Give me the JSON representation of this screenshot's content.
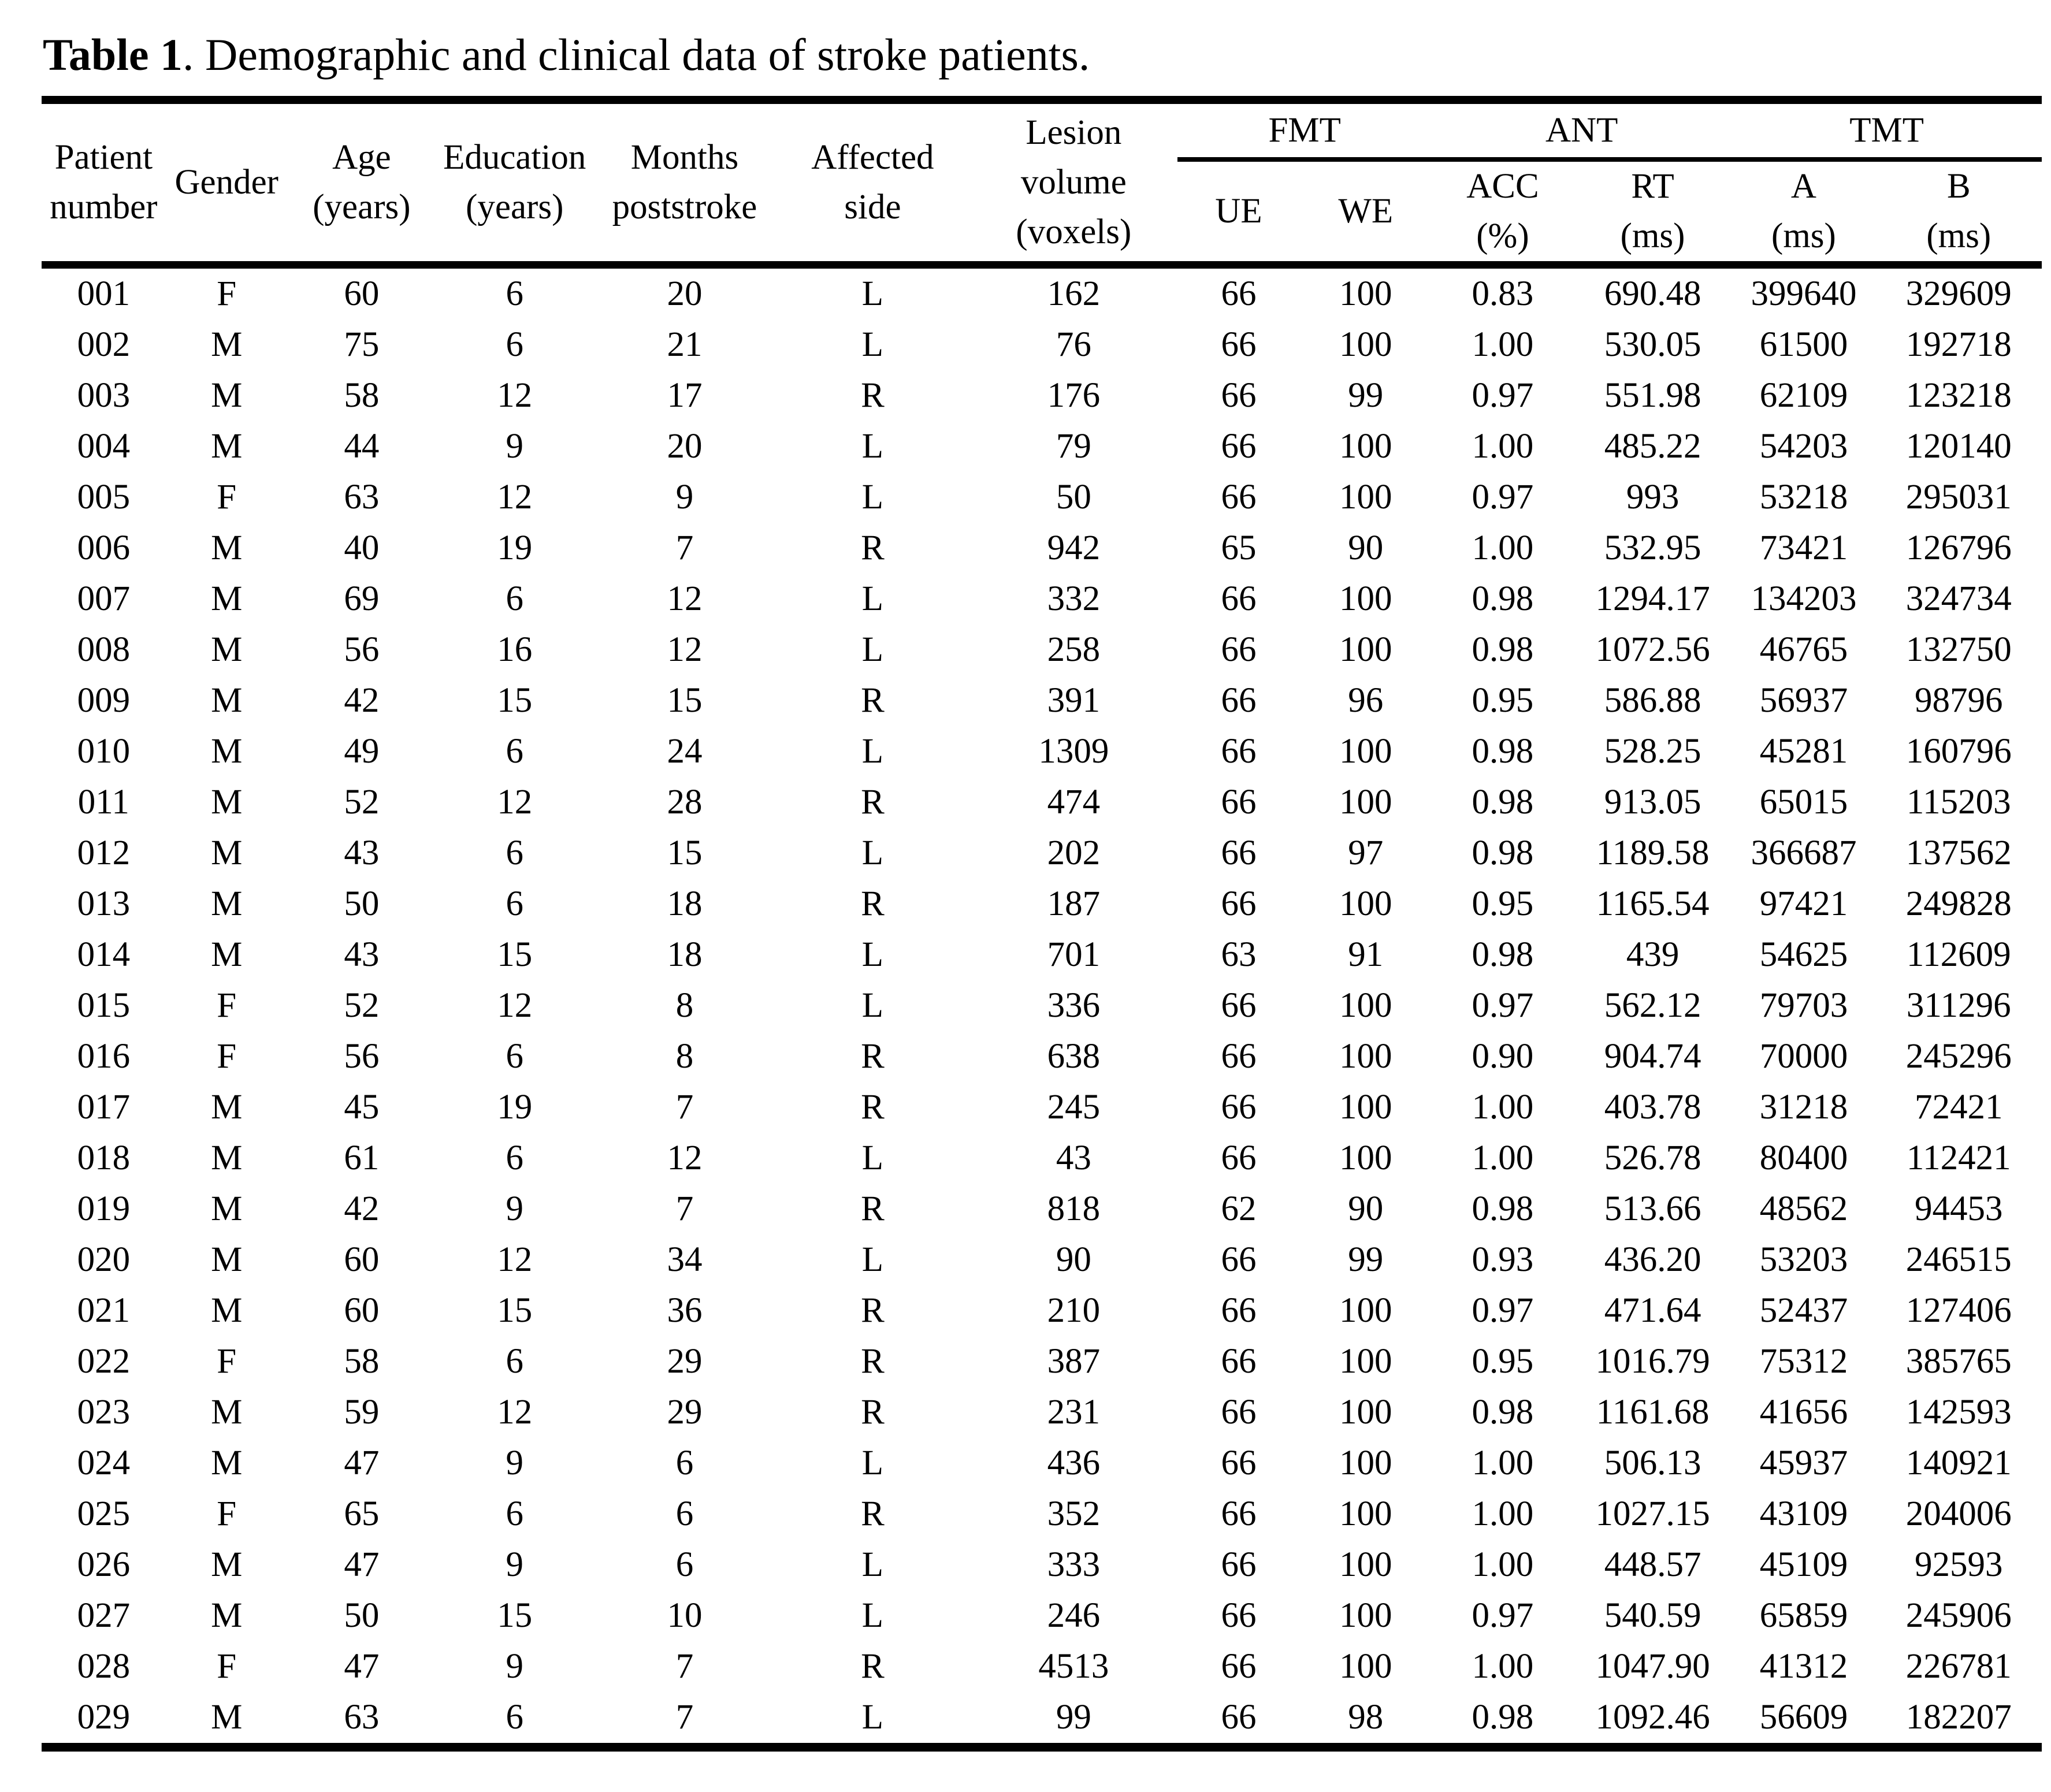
{
  "caption": {
    "bold": "Table 1",
    "rest": ". Demographic and clinical data of stroke patients."
  },
  "table": {
    "header": {
      "simple": [
        {
          "id": "patient_number",
          "lines": [
            "Patient",
            "number"
          ]
        },
        {
          "id": "gender",
          "lines": [
            "Gender"
          ]
        },
        {
          "id": "age",
          "lines": [
            "Age",
            "(years)"
          ]
        },
        {
          "id": "education",
          "lines": [
            "Education",
            "(years)"
          ]
        },
        {
          "id": "months_poststroke",
          "lines": [
            "Months",
            "poststroke"
          ]
        },
        {
          "id": "affected_side",
          "lines": [
            "Affected",
            "side"
          ]
        },
        {
          "id": "lesion_volume",
          "lines": [
            "Lesion",
            "volume",
            "(voxels)"
          ]
        }
      ],
      "groups": [
        {
          "label": "FMT"
        },
        {
          "label": "ANT"
        },
        {
          "label": "TMT"
        }
      ],
      "subcols": [
        {
          "id": "fmt_ue",
          "lines": [
            "UE"
          ]
        },
        {
          "id": "fmt_we",
          "lines": [
            "WE"
          ]
        },
        {
          "id": "ant_acc",
          "lines": [
            "ACC",
            "(%)"
          ]
        },
        {
          "id": "ant_rt",
          "lines": [
            "RT",
            "(ms)"
          ]
        },
        {
          "id": "tmt_a",
          "lines": [
            "A",
            "(ms)"
          ]
        },
        {
          "id": "tmt_b",
          "lines": [
            "B",
            "(ms)"
          ]
        }
      ]
    },
    "column_ids": [
      "patient_number",
      "gender",
      "age_years",
      "education_years",
      "months_poststroke",
      "affected_side",
      "lesion_volume_voxels",
      "fmt_ue",
      "fmt_we",
      "ant_acc_pct",
      "ant_rt_ms",
      "tmt_a_ms",
      "tmt_b_ms"
    ],
    "rows": [
      [
        "001",
        "F",
        "60",
        "6",
        "20",
        "L",
        "162",
        "66",
        "100",
        "0.83",
        "690.48",
        "399640",
        "329609"
      ],
      [
        "002",
        "M",
        "75",
        "6",
        "21",
        "L",
        "76",
        "66",
        "100",
        "1.00",
        "530.05",
        "61500",
        "192718"
      ],
      [
        "003",
        "M",
        "58",
        "12",
        "17",
        "R",
        "176",
        "66",
        "99",
        "0.97",
        "551.98",
        "62109",
        "123218"
      ],
      [
        "004",
        "M",
        "44",
        "9",
        "20",
        "L",
        "79",
        "66",
        "100",
        "1.00",
        "485.22",
        "54203",
        "120140"
      ],
      [
        "005",
        "F",
        "63",
        "12",
        "9",
        "L",
        "50",
        "66",
        "100",
        "0.97",
        "993",
        "53218",
        "295031"
      ],
      [
        "006",
        "M",
        "40",
        "19",
        "7",
        "R",
        "942",
        "65",
        "90",
        "1.00",
        "532.95",
        "73421",
        "126796"
      ],
      [
        "007",
        "M",
        "69",
        "6",
        "12",
        "L",
        "332",
        "66",
        "100",
        "0.98",
        "1294.17",
        "134203",
        "324734"
      ],
      [
        "008",
        "M",
        "56",
        "16",
        "12",
        "L",
        "258",
        "66",
        "100",
        "0.98",
        "1072.56",
        "46765",
        "132750"
      ],
      [
        "009",
        "M",
        "42",
        "15",
        "15",
        "R",
        "391",
        "66",
        "96",
        "0.95",
        "586.88",
        "56937",
        "98796"
      ],
      [
        "010",
        "M",
        "49",
        "6",
        "24",
        "L",
        "1309",
        "66",
        "100",
        "0.98",
        "528.25",
        "45281",
        "160796"
      ],
      [
        "011",
        "M",
        "52",
        "12",
        "28",
        "R",
        "474",
        "66",
        "100",
        "0.98",
        "913.05",
        "65015",
        "115203"
      ],
      [
        "012",
        "M",
        "43",
        "6",
        "15",
        "L",
        "202",
        "66",
        "97",
        "0.98",
        "1189.58",
        "366687",
        "137562"
      ],
      [
        "013",
        "M",
        "50",
        "6",
        "18",
        "R",
        "187",
        "66",
        "100",
        "0.95",
        "1165.54",
        "97421",
        "249828"
      ],
      [
        "014",
        "M",
        "43",
        "15",
        "18",
        "L",
        "701",
        "63",
        "91",
        "0.98",
        "439",
        "54625",
        "112609"
      ],
      [
        "015",
        "F",
        "52",
        "12",
        "8",
        "L",
        "336",
        "66",
        "100",
        "0.97",
        "562.12",
        "79703",
        "311296"
      ],
      [
        "016",
        "F",
        "56",
        "6",
        "8",
        "R",
        "638",
        "66",
        "100",
        "0.90",
        "904.74",
        "70000",
        "245296"
      ],
      [
        "017",
        "M",
        "45",
        "19",
        "7",
        "R",
        "245",
        "66",
        "100",
        "1.00",
        "403.78",
        "31218",
        "72421"
      ],
      [
        "018",
        "M",
        "61",
        "6",
        "12",
        "L",
        "43",
        "66",
        "100",
        "1.00",
        "526.78",
        "80400",
        "112421"
      ],
      [
        "019",
        "M",
        "42",
        "9",
        "7",
        "R",
        "818",
        "62",
        "90",
        "0.98",
        "513.66",
        "48562",
        "94453"
      ],
      [
        "020",
        "M",
        "60",
        "12",
        "34",
        "L",
        "90",
        "66",
        "99",
        "0.93",
        "436.20",
        "53203",
        "246515"
      ],
      [
        "021",
        "M",
        "60",
        "15",
        "36",
        "R",
        "210",
        "66",
        "100",
        "0.97",
        "471.64",
        "52437",
        "127406"
      ],
      [
        "022",
        "F",
        "58",
        "6",
        "29",
        "R",
        "387",
        "66",
        "100",
        "0.95",
        "1016.79",
        "75312",
        "385765"
      ],
      [
        "023",
        "M",
        "59",
        "12",
        "29",
        "R",
        "231",
        "66",
        "100",
        "0.98",
        "1161.68",
        "41656",
        "142593"
      ],
      [
        "024",
        "M",
        "47",
        "9",
        "6",
        "L",
        "436",
        "66",
        "100",
        "1.00",
        "506.13",
        "45937",
        "140921"
      ],
      [
        "025",
        "F",
        "65",
        "6",
        "6",
        "R",
        "352",
        "66",
        "100",
        "1.00",
        "1027.15",
        "43109",
        "204006"
      ],
      [
        "026",
        "M",
        "47",
        "9",
        "6",
        "L",
        "333",
        "66",
        "100",
        "1.00",
        "448.57",
        "45109",
        "92593"
      ],
      [
        "027",
        "M",
        "50",
        "15",
        "10",
        "L",
        "246",
        "66",
        "100",
        "0.97",
        "540.59",
        "65859",
        "245906"
      ],
      [
        "028",
        "F",
        "47",
        "9",
        "7",
        "R",
        "4513",
        "66",
        "100",
        "1.00",
        "1047.90",
        "41312",
        "226781"
      ],
      [
        "029",
        "M",
        "63",
        "6",
        "7",
        "L",
        "99",
        "66",
        "98",
        "0.98",
        "1092.46",
        "56609",
        "182207"
      ]
    ]
  }
}
